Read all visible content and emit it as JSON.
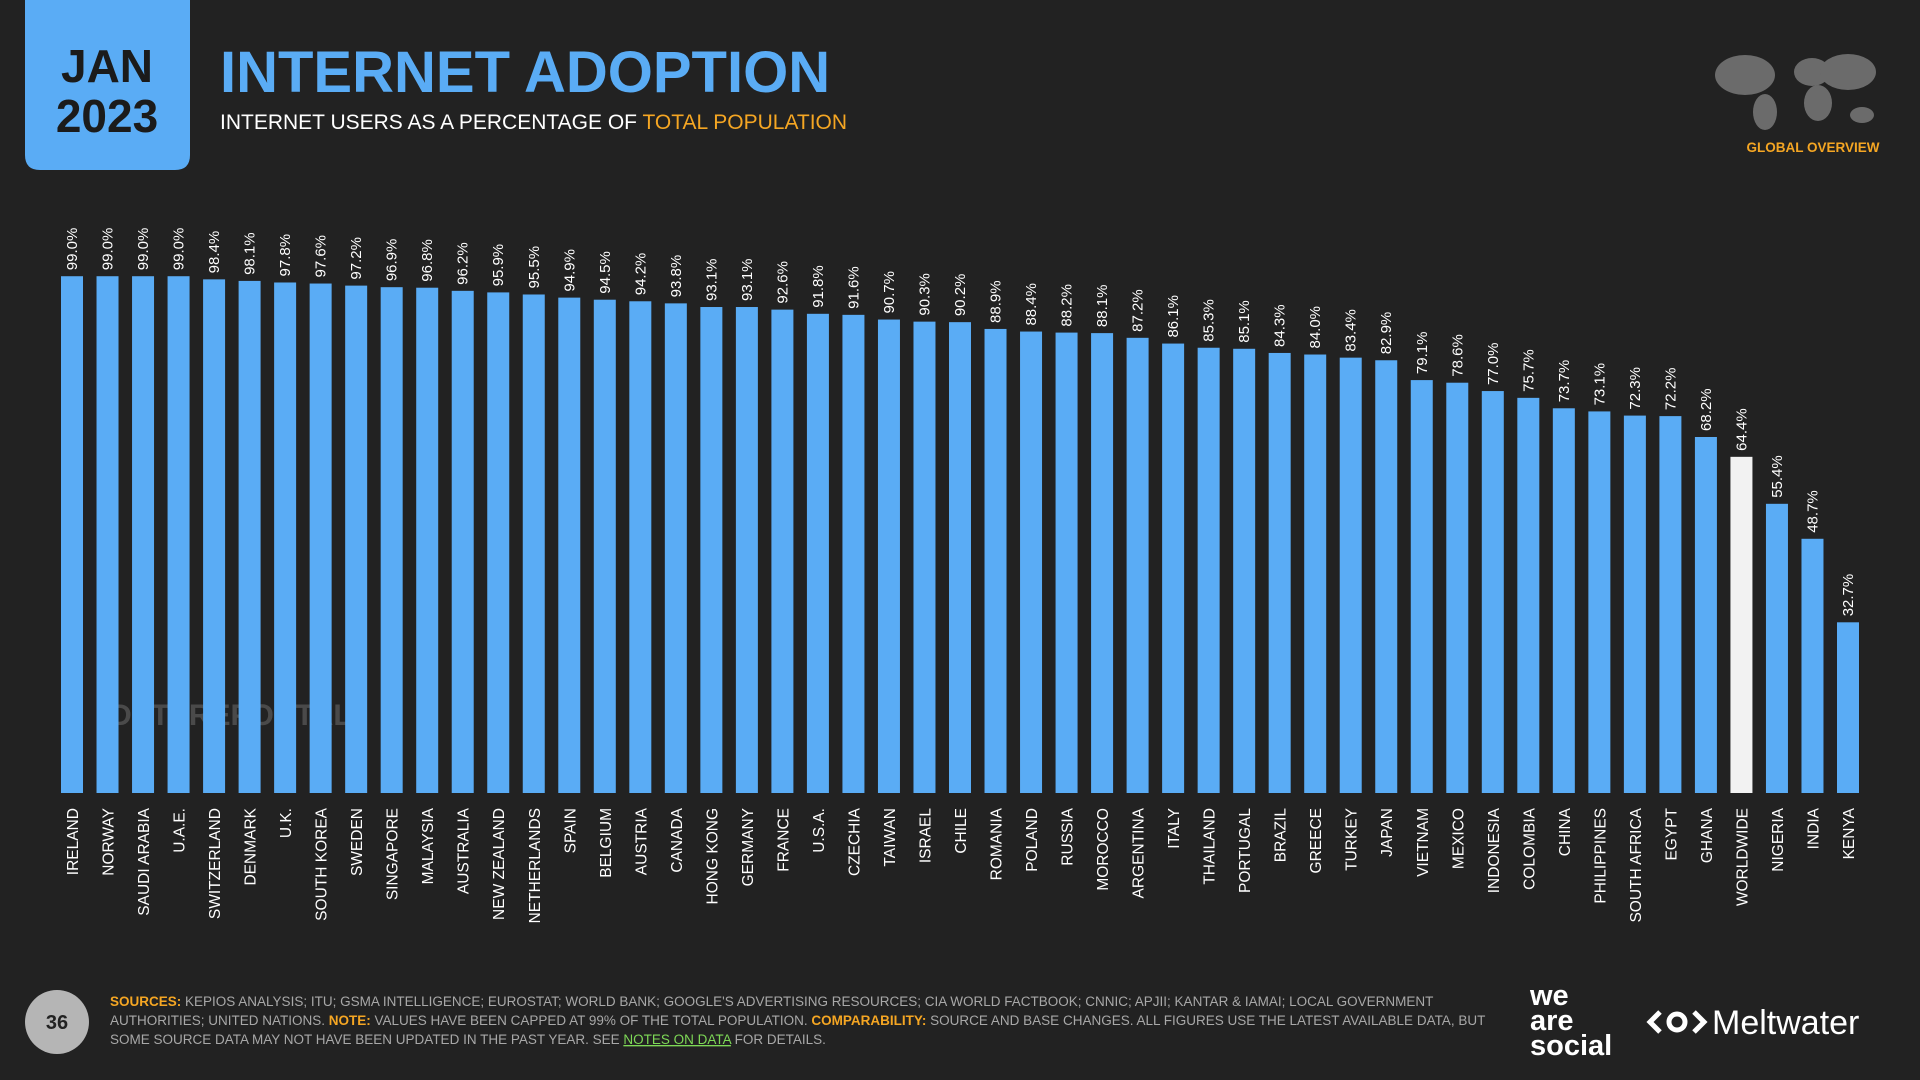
{
  "header": {
    "month": "JAN",
    "year": "2023",
    "section": "GLOBAL OVERVIEW"
  },
  "chart_data": {
    "type": "bar",
    "title": "INTERNET ADOPTION",
    "subtitle": "INTERNET USERS AS A PERCENTAGE OF ",
    "subtitle_highlight": "TOTAL POPULATION",
    "watermark": "DATAREPORTAL",
    "categories": [
      "IRELAND",
      "NORWAY",
      "SAUDI ARABIA",
      "U.A.E.",
      "SWITZERLAND",
      "DENMARK",
      "U.K.",
      "SOUTH KOREA",
      "SWEDEN",
      "SINGAPORE",
      "MALAYSIA",
      "AUSTRALIA",
      "NEW ZEALAND",
      "NETHERLANDS",
      "SPAIN",
      "BELGIUM",
      "AUSTRIA",
      "CANADA",
      "HONG KONG",
      "GERMANY",
      "FRANCE",
      "U.S.A.",
      "CZECHIA",
      "TAIWAN",
      "ISRAEL",
      "CHILE",
      "ROMANIA",
      "POLAND",
      "RUSSIA",
      "MOROCCO",
      "ARGENTINA",
      "ITALY",
      "THAILAND",
      "PORTUGAL",
      "BRAZIL",
      "GREECE",
      "TURKEY",
      "JAPAN",
      "VIETNAM",
      "MEXICO",
      "INDONESIA",
      "COLOMBIA",
      "CHINA",
      "PHILIPPINES",
      "SOUTH AFRICA",
      "EGYPT",
      "GHANA",
      "WORLDWIDE",
      "NIGERIA",
      "INDIA",
      "KENYA"
    ],
    "values": [
      99,
      99,
      99,
      99,
      98.4,
      98.1,
      97.8,
      97.6,
      97.2,
      96.9,
      96.8,
      96.2,
      95.9,
      95.5,
      94.9,
      94.5,
      94.2,
      93.8,
      93.1,
      93.1,
      92.6,
      91.8,
      91.6,
      90.7,
      90.3,
      90.2,
      88.9,
      88.4,
      88.2,
      88.1,
      87.2,
      86.1,
      85.3,
      85.1,
      84.3,
      84.0,
      83.4,
      82.9,
      79.1,
      78.6,
      77.0,
      75.7,
      73.7,
      73.1,
      72.3,
      72.2,
      68.2,
      64.4,
      55.4,
      48.7,
      32.7
    ],
    "value_labels": [
      "99.0%",
      "99.0%",
      "99.0%",
      "99.0%",
      "98.4%",
      "98.1%",
      "97.8%",
      "97.6%",
      "97.2%",
      "96.9%",
      "96.8%",
      "96.2%",
      "95.9%",
      "95.5%",
      "94.9%",
      "94.5%",
      "94.2%",
      "93.8%",
      "93.1%",
      "93.1%",
      "92.6%",
      "91.8%",
      "91.6%",
      "90.7%",
      "90.3%",
      "90.2%",
      "88.9%",
      "88.4%",
      "88.2%",
      "88.1%",
      "87.2%",
      "86.1%",
      "85.3%",
      "85.1%",
      "84.3%",
      "84.0%",
      "83.4%",
      "82.9%",
      "79.1%",
      "78.6%",
      "77.0%",
      "75.7%",
      "73.7%",
      "73.1%",
      "72.3%",
      "72.2%",
      "68.2%",
      "64.4%",
      "55.4%",
      "48.7%",
      "32.7%"
    ],
    "colors": [
      "#5aacf5",
      "#5aacf5",
      "#5aacf5",
      "#5aacf5",
      "#5aacf5",
      "#5aacf5",
      "#5aacf5",
      "#5aacf5",
      "#5aacf5",
      "#5aacf5",
      "#5aacf5",
      "#5aacf5",
      "#5aacf5",
      "#5aacf5",
      "#5aacf5",
      "#5aacf5",
      "#5aacf5",
      "#5aacf5",
      "#5aacf5",
      "#5aacf5",
      "#5aacf5",
      "#5aacf5",
      "#5aacf5",
      "#5aacf5",
      "#5aacf5",
      "#5aacf5",
      "#5aacf5",
      "#5aacf5",
      "#5aacf5",
      "#5aacf5",
      "#5aacf5",
      "#5aacf5",
      "#5aacf5",
      "#5aacf5",
      "#5aacf5",
      "#5aacf5",
      "#5aacf5",
      "#5aacf5",
      "#5aacf5",
      "#5aacf5",
      "#5aacf5",
      "#5aacf5",
      "#5aacf5",
      "#5aacf5",
      "#5aacf5",
      "#5aacf5",
      "#5aacf5",
      "#f2f2f2",
      "#5aacf5",
      "#5aacf5",
      "#5aacf5"
    ]
  },
  "footer": {
    "page": "36",
    "lines": [
      [
        "SOURCES:",
        " KEPIOS ANALYSIS; ITU; GSMA INTELLIGENCE; EUROSTAT; WORLD BANK; GOOGLE'S ADVERTISING RESOURCES; CIA WORLD FACTBOOK; CNNIC; APJII; KANTAR & IAMAI; LOCAL GOVERNMENT"
      ],
      [
        "AUTHORITIES; UNITED NATIONS. ",
        "NOTE:",
        " VALUES HAVE BEEN CAPPED AT 99% OF THE TOTAL POPULATION. ",
        "COMPARABILITY:",
        " SOURCE AND BASE CHANGES. ALL FIGURES USE THE LATEST AVAILABLE DATA, BUT"
      ],
      [
        "SOME SOURCE DATA MAY NOT HAVE BEEN UPDATED IN THE PAST YEAR. SEE ",
        "NOTES ON DATA",
        " FOR DETAILS."
      ]
    ],
    "brand1": [
      "we",
      "are",
      "social"
    ],
    "brand2": "Meltwater"
  }
}
